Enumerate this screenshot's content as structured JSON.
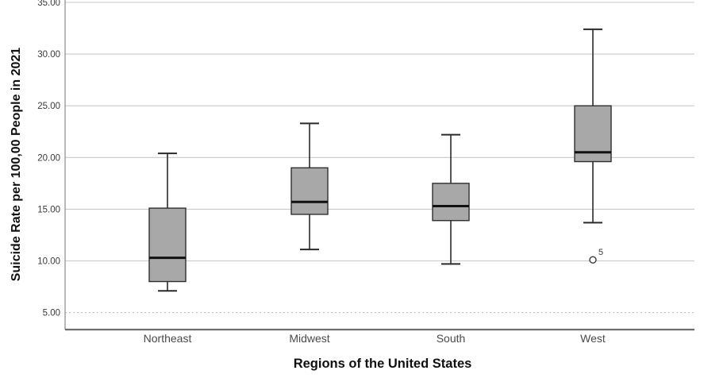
{
  "figure": {
    "background": "#ffffff"
  },
  "chart_data": {
    "type": "boxplot",
    "title": "",
    "xlabel": "Regions of the United States",
    "ylabel": "Suicide Rate per 100,00 People in 2021",
    "categories": [
      "Northeast",
      "Midwest",
      "South",
      "West"
    ],
    "yticks": [
      {
        "value": 5,
        "label": "5.00",
        "grid": "dotted"
      },
      {
        "value": 10,
        "label": "10.00",
        "grid": "solid"
      },
      {
        "value": 15,
        "label": "15.00",
        "grid": "solid"
      },
      {
        "value": 20,
        "label": "20.00",
        "grid": "solid"
      },
      {
        "value": 25,
        "label": "25.00",
        "grid": "solid"
      },
      {
        "value": 30,
        "label": "30.00",
        "grid": "solid"
      },
      {
        "value": 35,
        "label": "35.00",
        "grid": "solid"
      }
    ],
    "ylim": [
      3.4,
      35.2
    ],
    "grid": true,
    "legend": false,
    "series": [
      {
        "category": "Northeast",
        "whisker_low": 7.1,
        "q1": 8.0,
        "median": 10.3,
        "q3": 15.1,
        "whisker_high": 20.4,
        "outliers": []
      },
      {
        "category": "Midwest",
        "whisker_low": 11.1,
        "q1": 14.5,
        "median": 15.7,
        "q3": 19.0,
        "whisker_high": 23.3,
        "outliers": []
      },
      {
        "category": "South",
        "whisker_low": 9.7,
        "q1": 13.9,
        "median": 15.3,
        "q3": 17.5,
        "whisker_high": 22.2,
        "outliers": []
      },
      {
        "category": "West",
        "whisker_low": 13.7,
        "q1": 19.6,
        "median": 20.5,
        "q3": 25.0,
        "whisker_high": 32.4,
        "outliers": [
          {
            "value": 10.1,
            "label": "5"
          }
        ]
      }
    ],
    "colors": {
      "box_fill": "#a8a8a8",
      "box_border": "#2f2f2f",
      "median": "#111111",
      "whisker": "#2a2a2a",
      "gridline": "#c9c9c9",
      "gridline_dotted": "#c0c0c0",
      "y_axis": "#9a9a9a",
      "x_axis": "#6e6e6e",
      "tick_text": "#3a3a3a",
      "category_text": "#4a4a4a",
      "outlier": "#3a3a3a"
    }
  }
}
